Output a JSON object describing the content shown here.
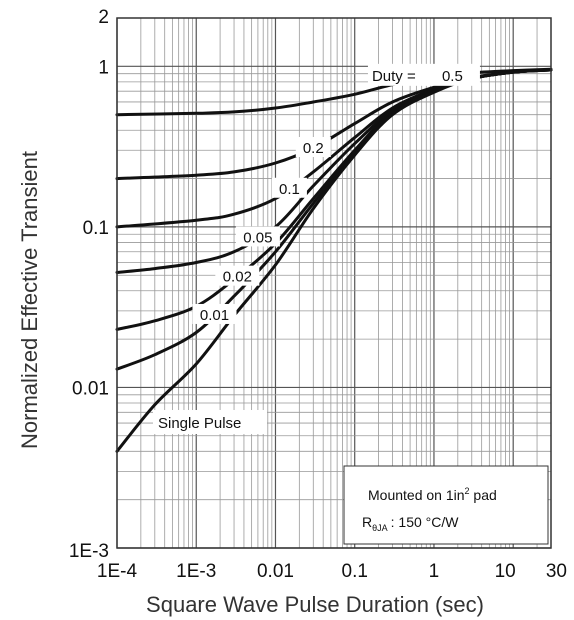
{
  "chart_data": {
    "type": "line",
    "title": "",
    "xlabel": "Square Wave Pulse Duration (sec)",
    "ylabel": "Normalized Effective Transient",
    "x_scale": "log",
    "y_scale": "log",
    "xlim": [
      0.0001,
      30
    ],
    "ylim": [
      0.001,
      2
    ],
    "grid": true,
    "x_ticks": [
      {
        "value": 0.0001,
        "label": "1E-4"
      },
      {
        "value": 0.001,
        "label": "1E-3"
      },
      {
        "value": 0.01,
        "label": "0.01"
      },
      {
        "value": 0.1,
        "label": "0.1"
      },
      {
        "value": 1,
        "label": "1"
      },
      {
        "value": 10,
        "label": "10"
      },
      {
        "value": 30,
        "label": "30"
      }
    ],
    "y_ticks": [
      {
        "value": 0.001,
        "label": "1E-3"
      },
      {
        "value": 0.01,
        "label": "0.01"
      },
      {
        "value": 0.1,
        "label": "0.1"
      },
      {
        "value": 1,
        "label": "1"
      },
      {
        "value": 2,
        "label": "2"
      }
    ],
    "duty_prefix": "Duty =",
    "series": [
      {
        "name": "0.5",
        "x": [
          0.0001,
          0.001,
          0.003,
          0.01,
          0.03,
          0.1,
          0.3,
          1,
          3,
          10,
          30
        ],
        "y": [
          0.5,
          0.51,
          0.52,
          0.55,
          0.6,
          0.67,
          0.77,
          0.86,
          0.91,
          0.94,
          0.96
        ]
      },
      {
        "name": "0.2",
        "x": [
          0.0001,
          0.001,
          0.003,
          0.01,
          0.03,
          0.1,
          0.3,
          1,
          3,
          10,
          30
        ],
        "y": [
          0.2,
          0.21,
          0.22,
          0.25,
          0.31,
          0.44,
          0.6,
          0.74,
          0.85,
          0.92,
          0.95
        ]
      },
      {
        "name": "0.1",
        "x": [
          0.0001,
          0.001,
          0.003,
          0.01,
          0.03,
          0.1,
          0.3,
          1,
          3,
          10,
          30
        ],
        "y": [
          0.1,
          0.11,
          0.12,
          0.15,
          0.22,
          0.36,
          0.55,
          0.72,
          0.84,
          0.92,
          0.95
        ]
      },
      {
        "name": "0.05",
        "x": [
          0.0001,
          0.0003,
          0.001,
          0.003,
          0.01,
          0.03,
          0.1,
          0.3,
          1,
          3,
          10,
          30
        ],
        "y": [
          0.052,
          0.055,
          0.06,
          0.07,
          0.1,
          0.18,
          0.33,
          0.53,
          0.71,
          0.84,
          0.92,
          0.95
        ]
      },
      {
        "name": "0.02",
        "x": [
          0.0001,
          0.0003,
          0.001,
          0.003,
          0.01,
          0.03,
          0.1,
          0.3,
          1,
          3,
          10,
          30
        ],
        "y": [
          0.023,
          0.026,
          0.032,
          0.047,
          0.079,
          0.15,
          0.3,
          0.52,
          0.7,
          0.84,
          0.92,
          0.95
        ]
      },
      {
        "name": "0.01",
        "x": [
          0.0001,
          0.0003,
          0.001,
          0.003,
          0.01,
          0.03,
          0.1,
          0.3,
          1,
          3,
          10,
          30
        ],
        "y": [
          0.013,
          0.016,
          0.022,
          0.037,
          0.07,
          0.14,
          0.29,
          0.51,
          0.7,
          0.84,
          0.92,
          0.95
        ]
      },
      {
        "name": "Single Pulse",
        "x": [
          0.0001,
          0.0003,
          0.001,
          0.003,
          0.01,
          0.03,
          0.1,
          0.3,
          1,
          3,
          10,
          30
        ],
        "y": [
          0.004,
          0.0078,
          0.014,
          0.028,
          0.058,
          0.13,
          0.28,
          0.5,
          0.69,
          0.84,
          0.92,
          0.95
        ]
      }
    ],
    "annotation": {
      "line1_prefix": "Mounted on 1in",
      "line1_sup": "2",
      "line1_suffix": " pad",
      "line2_main": "R",
      "line2_sub": "θJA",
      "line2_value": ": 150 °C/W"
    }
  }
}
